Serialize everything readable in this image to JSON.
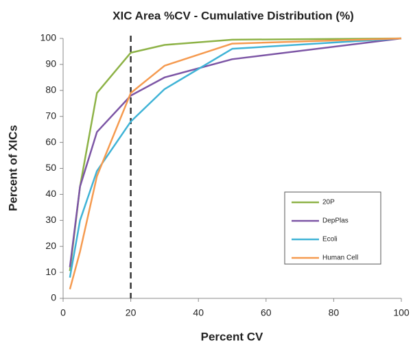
{
  "chart_data": {
    "type": "line",
    "title": "XIC Area %CV - Cumulative Distribution (%)",
    "x_label": "Percent CV",
    "y_label": "Percent of XICs",
    "x": [
      2,
      5,
      10,
      20,
      30,
      50,
      100
    ],
    "series": [
      {
        "name": "20P",
        "color": "#8db246",
        "values": [
          10.5,
          43,
          79,
          94.5,
          97.5,
          99.5,
          100
        ]
      },
      {
        "name": "DepPlas",
        "color": "#7c55a5",
        "values": [
          12,
          43,
          64,
          78,
          85,
          92,
          100
        ]
      },
      {
        "name": "Ecoli",
        "color": "#3fb3d6",
        "values": [
          8,
          30,
          49,
          68,
          80.5,
          96,
          100
        ]
      },
      {
        "name": "Human Cell",
        "color": "#f59a4f",
        "values": [
          3.5,
          18,
          47,
          79,
          89.5,
          98,
          100
        ]
      }
    ],
    "vline": 20,
    "xlim": [
      0,
      100
    ],
    "xticks": [
      0,
      20,
      40,
      60,
      80,
      100
    ],
    "ylim": [
      0,
      100
    ],
    "yticks": [
      0,
      10,
      20,
      30,
      40,
      50,
      60,
      70,
      80,
      90,
      100
    ]
  }
}
